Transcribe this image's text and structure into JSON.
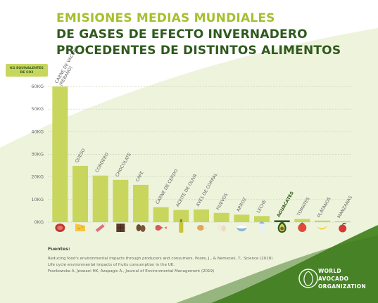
{
  "title": {
    "line1": "EMISIONES MEDIAS MUNDIALES",
    "line2": "DE GASES DE EFECTO INVERNADERO",
    "line3": "PROCEDENTES DE DISTINTOS ALIMENTOS"
  },
  "colors": {
    "accent": "#a6bf2e",
    "dark_green": "#2f5a1e",
    "bar": "#c9d65e",
    "highlight": "#2f5a1e"
  },
  "chart_data": {
    "type": "bar",
    "ylabel": "KG EQUIVALENTES DE CO2",
    "ylim": [
      0,
      60
    ],
    "yticks": [
      0,
      10,
      20,
      30,
      40,
      50,
      60
    ],
    "ytick_labels": [
      "0KG",
      "10KG",
      "20KG",
      "30KG",
      "40KG",
      "50KG",
      "60KG"
    ],
    "grid": true,
    "categories": [
      "CARNE DE VACUNO (REBAÑO)",
      "QUESO",
      "CORDERO",
      "CHOCOLATE",
      "CAFE",
      "CARNE DE CERDO",
      "ACEITE DE OLIVA",
      "AVES DE CORRAL",
      "HUEVOS",
      "ARROZ",
      "LECHE",
      "AGUACATES",
      "TOMATES",
      "PLÁTANOS",
      "MANZANAS"
    ],
    "values": [
      60,
      24.9,
      20.6,
      18.7,
      16.5,
      6.6,
      5.4,
      5.6,
      4.1,
      3.3,
      2.7,
      0.8,
      1.4,
      0.7,
      0.4
    ],
    "highlight": "AGUACATES"
  },
  "sources": {
    "heading": "Fuentes:",
    "lines": [
      "Reducing food's environmental impacts through producers and consumers. Poore, J., & Nemecek, T., Science (2018)",
      "Life cycle environmental impacts of fruits consumption in the UK.",
      "Frankowska A, Jeswani HK, Azapagic A., Journal of Environmental Management (2019)"
    ]
  },
  "logo": {
    "line1": "WORLD",
    "line2": "AVOCADO",
    "line3": "ORGANIZATION"
  },
  "icons": [
    "steak-icon",
    "cheese-icon",
    "lamb-icon",
    "chocolate-icon",
    "coffee-beans-icon",
    "bacon-icon",
    "olive-oil-icon",
    "chicken-icon",
    "eggs-icon",
    "rice-icon",
    "milk-icon",
    "avocado-icon",
    "tomato-icon",
    "banana-icon",
    "apple-icon"
  ]
}
